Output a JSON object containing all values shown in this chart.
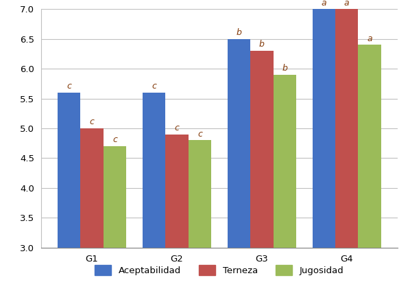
{
  "groups": [
    "G1",
    "G2",
    "G3",
    "G4"
  ],
  "series": {
    "Aceptabilidad": [
      5.6,
      5.6,
      6.5,
      7.0
    ],
    "Terneza": [
      5.0,
      4.9,
      6.3,
      7.0
    ],
    "Jugosidad": [
      4.7,
      4.8,
      5.9,
      6.4
    ]
  },
  "colors": {
    "Aceptabilidad": "#4472C4",
    "Terneza": "#C0504D",
    "Jugosidad": "#9BBB59"
  },
  "labels": {
    "Aceptabilidad": [
      "c",
      "c",
      "b",
      "a"
    ],
    "Terneza": [
      "c",
      "c",
      "b",
      "a"
    ],
    "Jugosidad": [
      "c",
      "c",
      "b",
      "a"
    ]
  },
  "label_color": "#843C0C",
  "ylim": [
    3.0,
    7.0
  ],
  "yticks": [
    3.0,
    3.5,
    4.0,
    4.5,
    5.0,
    5.5,
    6.0,
    6.5,
    7.0
  ],
  "bar_width": 0.27,
  "background_color": "#FFFFFF",
  "grid_color": "#C0C0C0",
  "label_fontsize": 9,
  "tick_fontsize": 9.5,
  "legend_fontsize": 9.5
}
